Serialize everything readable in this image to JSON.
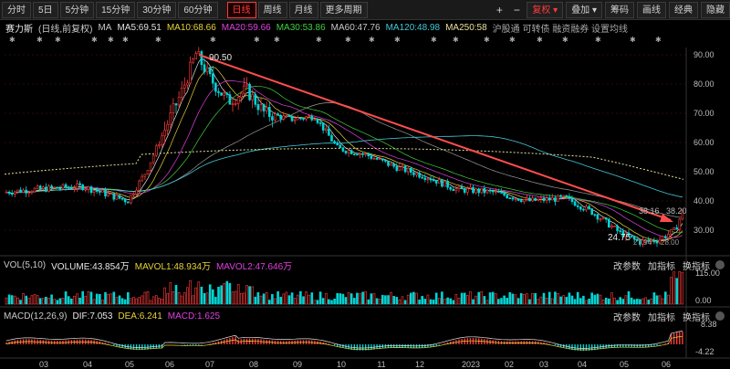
{
  "toolbar": {
    "periods": [
      "分时",
      "5日",
      "5分钟",
      "15分钟",
      "30分钟",
      "60分钟"
    ],
    "tabs": [
      "日线",
      "周线",
      "月线",
      "更多周期"
    ],
    "active_tab": 0,
    "plus": "+",
    "minus": "−",
    "adjust": "复权",
    "overlay": "叠加",
    "chips": "筹码",
    "draw": "画线",
    "classic": "经典",
    "hide": "隐藏"
  },
  "ma_legend": {
    "stock": "赛力斯",
    "mode": "(日线,前复权)",
    "ma_label": "MA",
    "items": [
      {
        "text": "MA5:69.51",
        "color": "#e0e0e0"
      },
      {
        "text": "MA10:68.66",
        "color": "#e6d23a"
      },
      {
        "text": "MA20:59.66",
        "color": "#e040e0"
      },
      {
        "text": "MA30:53.86",
        "color": "#40d040"
      },
      {
        "text": "MA60:47.76",
        "color": "#c8c8c8"
      },
      {
        "text": "MA120:48.98",
        "color": "#40c8d8"
      },
      {
        "text": "MA250:58",
        "color": "#e8e09a"
      }
    ],
    "tools": "沪股通  可转债  融资融券  设置均线"
  },
  "price_axis": [
    "90.00",
    "80.00",
    "70.00",
    "60.00",
    "50.00",
    "40.00",
    "30.00"
  ],
  "annotations": {
    "high": "90.50",
    "low": "24.75",
    "ref_a": "38.16",
    "ref_b": "38.20",
    "ref_c": "27.94",
    "ref_d": "28.00"
  },
  "volume": {
    "label": "VOL(5,10)",
    "volume": "VOLUME:43.854万",
    "mavol1": "MAVOL1:48.934万",
    "mavol2": "MAVOL2:47.646万",
    "axis_top": "115.00",
    "axis_bottom": "0.00",
    "btns": [
      "改参数",
      "加指标",
      "换指标"
    ]
  },
  "macd": {
    "label": "MACD(12,26,9)",
    "dif": "DIF:7.053",
    "dea": "DEA:6.241",
    "macd": "MACD:1.625",
    "axis_top": "8.38",
    "axis_bottom": "-4.22",
    "btns": [
      "改参数",
      "加指标",
      "换指标"
    ]
  },
  "x_axis": [
    "03",
    "04",
    "05",
    "06",
    "07",
    "08",
    "09",
    "10",
    "11",
    "12",
    "2023",
    "02",
    "03",
    "04",
    "05",
    "06"
  ],
  "colors": {
    "up": "#ff3b3b",
    "down": "#00d4d4",
    "trend": "#ff4d4d"
  }
}
